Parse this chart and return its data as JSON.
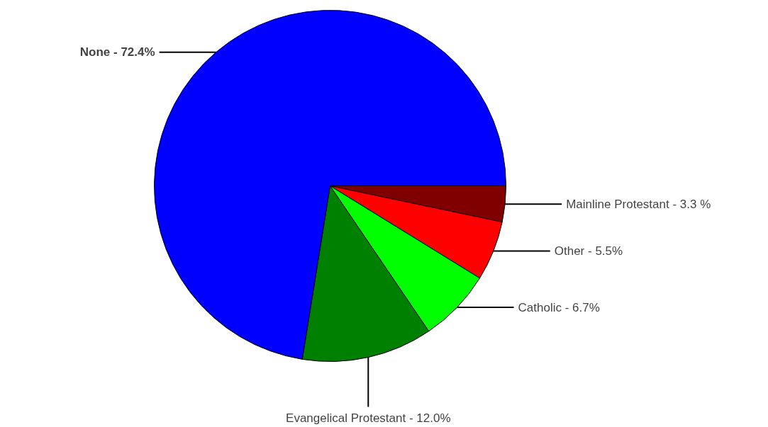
{
  "chart_data": {
    "type": "pie",
    "categories": [
      "Mainline Protestant",
      "Other",
      "Catholic",
      "Evangelical Protestant",
      "None"
    ],
    "values": [
      3.3,
      5.5,
      6.7,
      12.0,
      72.4
    ],
    "colors": [
      "#800000",
      "#ff0000",
      "#00ff00",
      "#008000",
      "#0000ff"
    ],
    "value_labels": [
      "3.3 %",
      "5.5%",
      "6.7%",
      "12.0%",
      "72.4%"
    ]
  }
}
